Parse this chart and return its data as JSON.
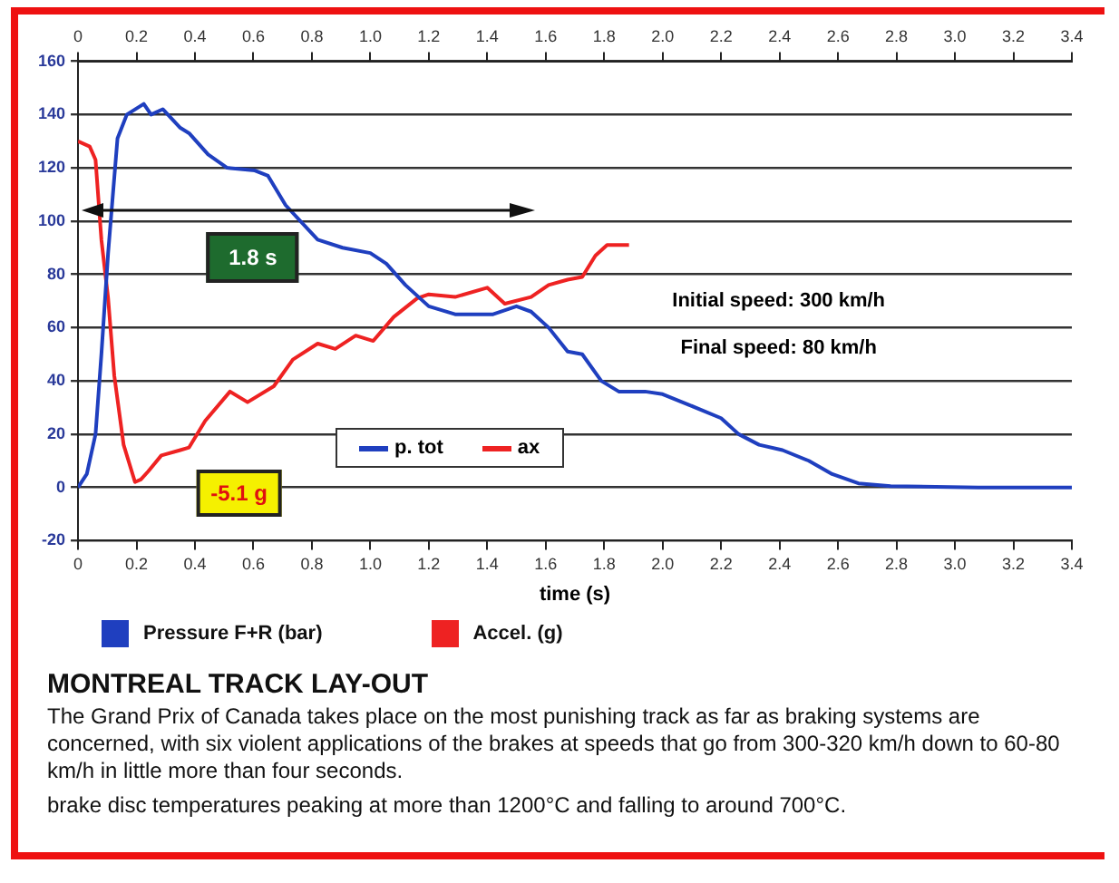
{
  "chart_data": {
    "type": "line",
    "title": "MONTREAL TRACK LAY-OUT",
    "xlabel": "time (s)",
    "xlim": [
      0,
      3.4
    ],
    "ylim": [
      -20,
      160
    ],
    "xticks": [
      0,
      0.2,
      0.4,
      0.6,
      0.8,
      {
        "value": 1,
        "label": "1.0"
      },
      1.2,
      1.4,
      1.6,
      1.8,
      {
        "value": 2,
        "label": "2.0"
      },
      2.2,
      2.4,
      2.6,
      2.8,
      {
        "value": 3,
        "label": "3.0"
      },
      3.2,
      3.4
    ],
    "x2lim": [
      0,
      3.4
    ],
    "x2ticks": [
      0,
      0.2,
      0.4,
      0.6,
      0.8,
      {
        "value": 1,
        "label": "1.0"
      },
      1.2,
      1.4,
      1.6,
      1.8,
      {
        "value": 2,
        "label": "2.0"
      },
      2.2,
      2.4,
      2.6,
      2.8,
      {
        "value": 3,
        "label": "3.0"
      },
      3.2,
      3.4
    ],
    "yticks": [
      -20,
      0,
      20,
      40,
      60,
      80,
      100,
      120,
      140,
      160
    ],
    "grid": "y",
    "legend": "bottom",
    "marker": "none",
    "line_style": "solid",
    "series": [
      {
        "name": "p. tot",
        "color": "#1f3fbf",
        "x": [
          0,
          0.03,
          0.06,
          0.08,
          0.103,
          0.135,
          0.167,
          0.225,
          0.25,
          0.29,
          0.35,
          0.38,
          0.445,
          0.51,
          0.605,
          0.65,
          0.71,
          0.82,
          0.905,
          1.0,
          1.055,
          1.12,
          1.2,
          1.29,
          1.42,
          1.5,
          1.55,
          1.61,
          1.675,
          1.725,
          1.79,
          1.85,
          1.94,
          2.0,
          2.09,
          2.2,
          2.26,
          2.33,
          2.41,
          2.5,
          2.58,
          2.67,
          2.78,
          3.08,
          3.4
        ],
        "values": [
          0,
          5,
          20,
          50,
          88,
          131,
          140,
          144,
          140,
          142,
          135,
          133,
          125,
          120,
          119,
          117,
          106,
          93,
          90,
          88,
          84,
          76,
          68,
          65,
          65,
          68,
          66,
          60,
          51,
          50,
          40,
          36,
          36,
          35,
          31,
          26,
          20,
          16,
          14,
          10,
          5,
          1.5,
          0.5,
          0,
          0
        ]
      },
      {
        "name": "ax",
        "color": "#ee2222",
        "x": [
          0,
          0.04,
          0.06,
          0.08,
          0.103,
          0.124,
          0.156,
          0.195,
          0.215,
          0.24,
          0.285,
          0.35,
          0.38,
          0.435,
          0.52,
          0.58,
          0.67,
          0.735,
          0.82,
          0.88,
          0.95,
          1.01,
          1.08,
          1.16,
          1.2,
          1.29,
          1.4,
          1.46,
          1.55,
          1.61,
          1.675,
          1.725,
          1.77,
          1.81,
          1.885
        ],
        "values": [
          130,
          128,
          123,
          93,
          71,
          42,
          16,
          2,
          3,
          6,
          12,
          14,
          15,
          25,
          36,
          32,
          38,
          48,
          54,
          52,
          57,
          55,
          64,
          71,
          72.5,
          71.5,
          75,
          69,
          71.5,
          76,
          78,
          79,
          87,
          91,
          91
        ]
      }
    ],
    "annotations": [
      "1.8 s",
      "-5.1 g",
      "Initial speed: 300 km/h",
      "Final speed: 80 km/h",
      "Pressure F+R (bar)",
      "Accel. (g)",
      "The Grand Prix of Canada takes place on the most punishing track as far as braking systems are concerned, with six violent applications of the brakes at speeds that go from 300-320 km/h down to 60-80 km/h in little more than four seconds.",
      "brake disc temperatures peaking at more than 1200°C and falling to around 700°C."
    ]
  }
}
